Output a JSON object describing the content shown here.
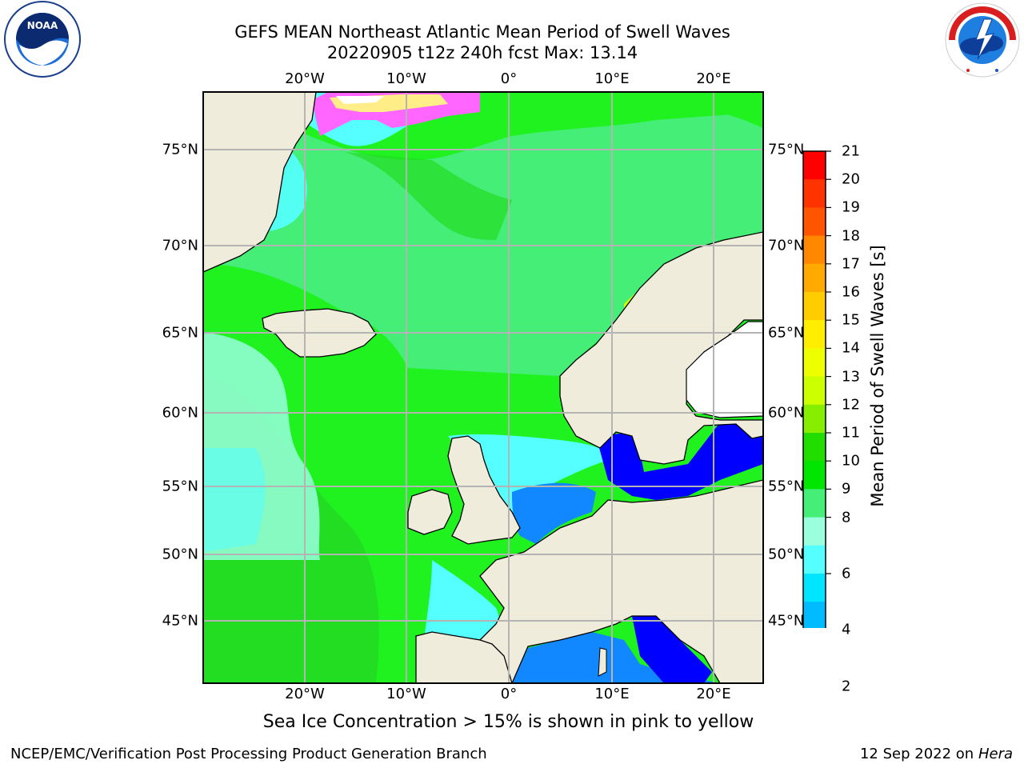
{
  "header": {
    "title_line1": "GEFS MEAN Northeast Atlantic Mean Period of Swell Waves",
    "title_line2": "20220905 t12z 240h fcst   Max: 13.14"
  },
  "logos": {
    "left": "NOAA",
    "right": "NATIONAL WEATHER SERVICE"
  },
  "map": {
    "lon_labels": [
      "20°W",
      "10°W",
      "0°",
      "10°E",
      "20°E"
    ],
    "lat_labels": [
      "75°N",
      "70°N",
      "65°N",
      "60°N",
      "55°N",
      "50°N",
      "45°N"
    ],
    "extent": {
      "lon_min": -30,
      "lon_max": 24.5,
      "lat_min": 41,
      "lat_max": 78
    },
    "colors": {
      "land": "#efecdc",
      "grid": "#b4b4b4",
      "coast": "#000000",
      "ice": "#ff66ff"
    }
  },
  "colorbar": {
    "title": "Mean Period of Swell Waves [s]",
    "ticks": [
      "21",
      "20",
      "19",
      "18",
      "17",
      "16",
      "15",
      "14",
      "13",
      "12",
      "11",
      "10",
      "9",
      "8",
      "7",
      "6",
      "5",
      "4",
      "3",
      "2"
    ],
    "shown_ticks": [
      "21",
      "20",
      "19",
      "18",
      "17",
      "16",
      "15",
      "14",
      "13",
      "12",
      "11",
      "10",
      "9",
      "8",
      "6",
      "4",
      "2"
    ],
    "colors": [
      "#ff0000",
      "#ff3300",
      "#ff5500",
      "#ff8800",
      "#ffaa00",
      "#ffcc00",
      "#ffee00",
      "#eeff00",
      "#ccff00",
      "#88ee00",
      "#22dd00",
      "#00e600",
      "#44ee77",
      "#99ffdd",
      "#55ffff",
      "#00e5ff",
      "#00bbff",
      "#1188ff",
      "#0066ff",
      "#0000ff"
    ]
  },
  "footer": {
    "note": "Sea Ice Concentration > 15% is shown in pink to yellow",
    "credit": "NCEP/EMC/Verification Post Processing Product Generation Branch",
    "date": "12 Sep 2022 on",
    "host": "Hera"
  }
}
